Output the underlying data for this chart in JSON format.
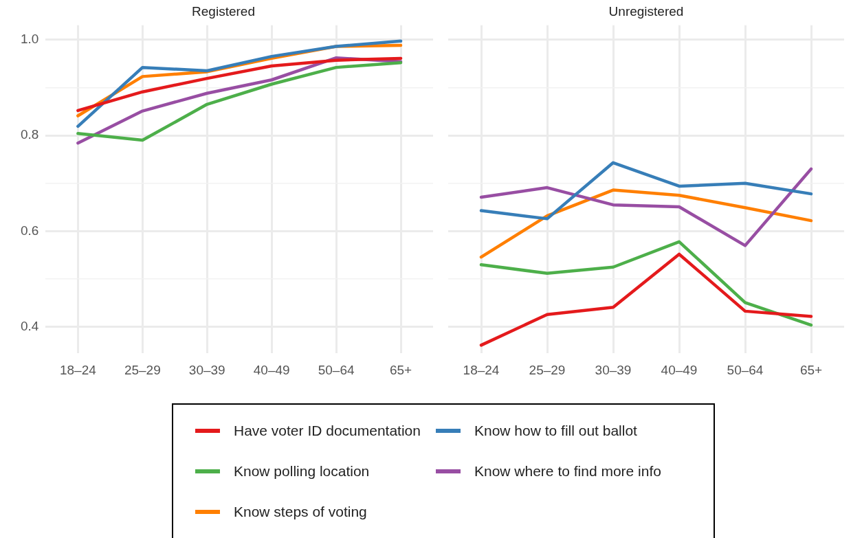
{
  "chart_data": [
    {
      "type": "line",
      "title": "Registered",
      "categories": [
        "18–24",
        "25–29",
        "30–39",
        "40–49",
        "50–64",
        "65+"
      ],
      "series": [
        {
          "name": "Have voter ID documentation",
          "color": "#e41a1c",
          "values": [
            0.852,
            0.891,
            0.919,
            0.945,
            0.957,
            0.961
          ]
        },
        {
          "name": "Know how to fill out ballot",
          "color": "#377eb8",
          "values": [
            0.819,
            0.942,
            0.935,
            0.965,
            0.986,
            0.997
          ]
        },
        {
          "name": "Know polling location",
          "color": "#4daf4a",
          "values": [
            0.804,
            0.79,
            0.865,
            0.907,
            0.942,
            0.952
          ]
        },
        {
          "name": "Know where to find more info",
          "color": "#984ea3",
          "values": [
            0.784,
            0.851,
            0.888,
            0.916,
            0.962,
            0.954
          ]
        },
        {
          "name": "Know steps of voting",
          "color": "#ff7f00",
          "values": [
            0.841,
            0.923,
            0.933,
            0.961,
            0.986,
            0.988
          ]
        }
      ],
      "ylim": [
        0.345,
        1.03
      ],
      "yticks": [
        {
          "value": 0.4,
          "label": "0.4"
        },
        {
          "value": 0.5,
          "label": null
        },
        {
          "value": 0.6,
          "label": "0.6"
        },
        {
          "value": 0.7,
          "label": null
        },
        {
          "value": 0.8,
          "label": "0.8"
        },
        {
          "value": 0.9,
          "label": null
        },
        {
          "value": 1.0,
          "label": "1.0"
        }
      ],
      "grid": true,
      "legend": "bottom",
      "marker": "none",
      "line_style": "solid"
    },
    {
      "type": "line",
      "title": "Unregistered",
      "categories": [
        "18–24",
        "25–29",
        "30–39",
        "40–49",
        "50–64",
        "65+"
      ],
      "series": [
        {
          "color": "#e41a1c",
          "values": [
            0.362,
            0.426,
            0.441,
            0.552,
            0.433,
            0.422
          ]
        },
        {
          "color": "#377eb8",
          "values": [
            0.643,
            0.626,
            0.743,
            0.694,
            0.7,
            0.678
          ]
        },
        {
          "color": "#4daf4a",
          "values": [
            0.53,
            0.512,
            0.525,
            0.578,
            0.451,
            0.404
          ]
        },
        {
          "color": "#984ea3",
          "values": [
            0.671,
            0.691,
            0.655,
            0.651,
            0.57,
            0.73
          ]
        },
        {
          "color": "#ff7f00",
          "values": [
            0.546,
            0.632,
            0.686,
            0.675,
            0.649,
            0.622
          ]
        }
      ],
      "ylim": [
        0.345,
        1.03
      ],
      "yticks": [
        0.4,
        {
          "value": 0.5,
          "label": null
        },
        0.6,
        {
          "value": 0.7,
          "label": null
        },
        0.8,
        {
          "value": 0.9,
          "label": null
        },
        1.0
      ],
      "grid": true,
      "tick_labels": "x",
      "marker": "none",
      "line_style": "solid"
    }
  ]
}
